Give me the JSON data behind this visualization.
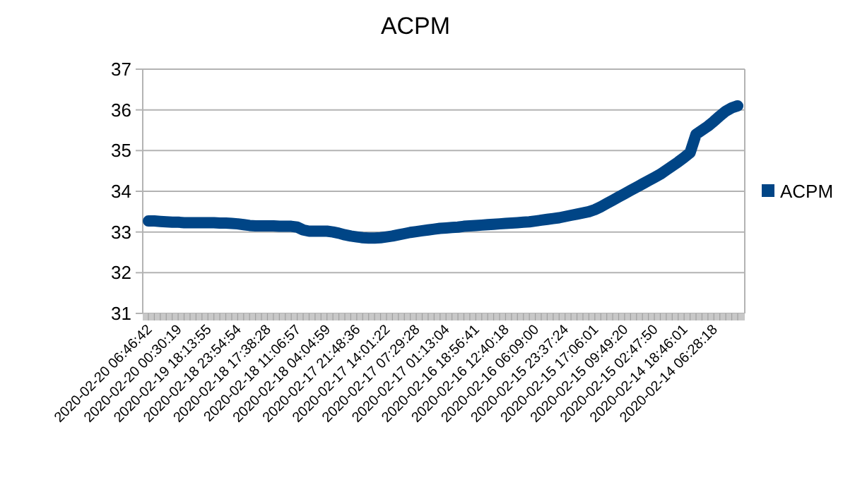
{
  "chart_data": {
    "type": "line",
    "title": "ACPM",
    "categories": [
      "2020-02-20 06:46:42",
      null,
      null,
      null,
      null,
      "2020-02-20 00:30:19",
      null,
      null,
      null,
      null,
      "2020-02-19 18:13:55",
      null,
      null,
      null,
      null,
      "2020-02-18 23:54:54",
      null,
      null,
      null,
      null,
      "2020-02-18 17:38:28",
      null,
      null,
      null,
      null,
      "2020-02-18 11:06:57",
      null,
      null,
      null,
      null,
      "2020-02-18 04:04:59",
      null,
      null,
      null,
      null,
      "2020-02-17 21:48:36",
      null,
      null,
      null,
      null,
      "2020-02-17 14:01:22",
      null,
      null,
      null,
      null,
      "2020-02-17 07:29:28",
      null,
      null,
      null,
      null,
      "2020-02-17 01:13:04",
      null,
      null,
      null,
      null,
      "2020-02-16 18:56:41",
      null,
      null,
      null,
      null,
      "2020-02-16 12:40:18",
      null,
      null,
      null,
      null,
      "2020-02-16 06:09:00",
      null,
      null,
      null,
      null,
      "2020-02-15 23:37:24",
      null,
      null,
      null,
      null,
      "2020-02-15 17:06:01",
      null,
      null,
      null,
      null,
      "2020-02-15 09:49:20",
      null,
      null,
      null,
      null,
      "2020-02-15 02:47:50",
      null,
      null,
      null,
      null,
      "2020-02-14 18:46:01",
      null,
      null,
      null,
      null,
      "2020-02-14 06:28:18",
      null,
      null,
      null,
      null
    ],
    "series": [
      {
        "name": "ACPM",
        "color": "#004586",
        "values": [
          33.27,
          33.27,
          33.26,
          33.25,
          33.24,
          33.24,
          33.23,
          33.23,
          33.23,
          33.23,
          33.23,
          33.23,
          33.22,
          33.22,
          33.21,
          33.2,
          33.18,
          33.16,
          33.15,
          33.15,
          33.15,
          33.15,
          33.14,
          33.14,
          33.14,
          33.12,
          33.05,
          33.02,
          33.02,
          33.02,
          33.02,
          33.0,
          32.97,
          32.93,
          32.9,
          32.88,
          32.86,
          32.85,
          32.85,
          32.86,
          32.88,
          32.9,
          32.93,
          32.96,
          32.99,
          33.01,
          33.03,
          33.05,
          33.07,
          33.09,
          33.1,
          33.11,
          33.12,
          33.14,
          33.15,
          33.16,
          33.17,
          33.18,
          33.19,
          33.2,
          33.21,
          33.22,
          33.23,
          33.24,
          33.25,
          33.27,
          33.29,
          33.31,
          33.33,
          33.35,
          33.38,
          33.41,
          33.44,
          33.47,
          33.5,
          33.55,
          33.62,
          33.7,
          33.78,
          33.86,
          33.94,
          34.02,
          34.1,
          34.18,
          34.26,
          34.34,
          34.42,
          34.52,
          34.62,
          34.72,
          34.83,
          34.95,
          35.4,
          35.5,
          35.6,
          35.72,
          35.85,
          35.97,
          36.05,
          36.1
        ]
      }
    ],
    "ylim": [
      31,
      37
    ],
    "yticks": [
      31,
      32,
      33,
      34,
      35,
      36,
      37
    ],
    "grid": "y",
    "legend": "right",
    "line_style": "solid"
  }
}
